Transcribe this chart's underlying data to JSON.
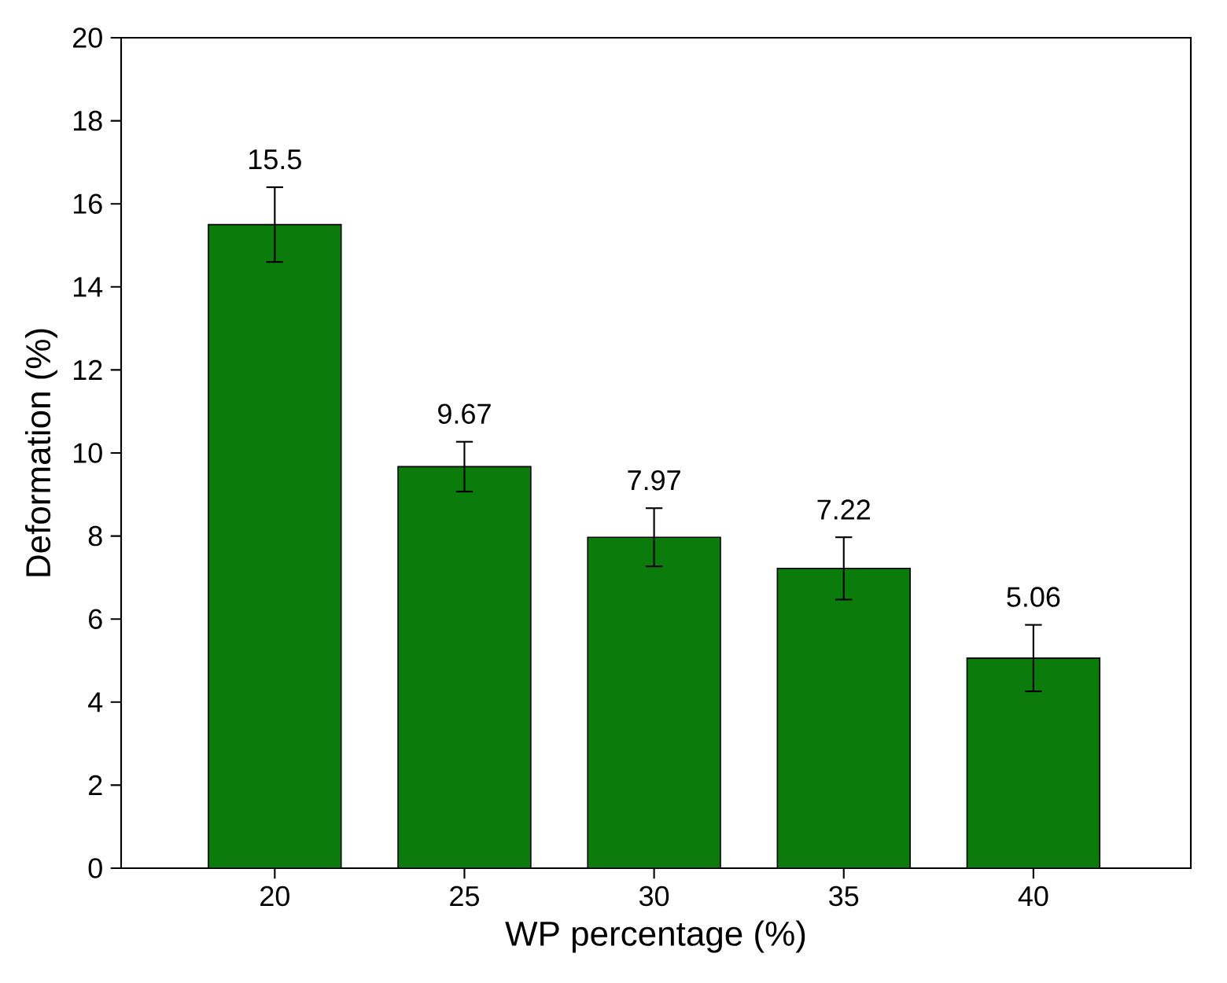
{
  "chart_data": {
    "type": "bar",
    "xlabel": "WP percentage (%)",
    "ylabel": "Deformation (%)",
    "categories": [
      "20",
      "25",
      "30",
      "35",
      "40"
    ],
    "values": [
      15.5,
      9.67,
      7.97,
      7.22,
      5.06
    ],
    "errors": [
      0.9,
      0.6,
      0.7,
      0.75,
      0.8
    ],
    "color": "#0b7b0b",
    "data_labels": true,
    "ylim": [
      0,
      20
    ],
    "yticks": [
      0,
      2,
      4,
      6,
      8,
      10,
      12,
      14,
      16,
      18,
      20
    ]
  }
}
